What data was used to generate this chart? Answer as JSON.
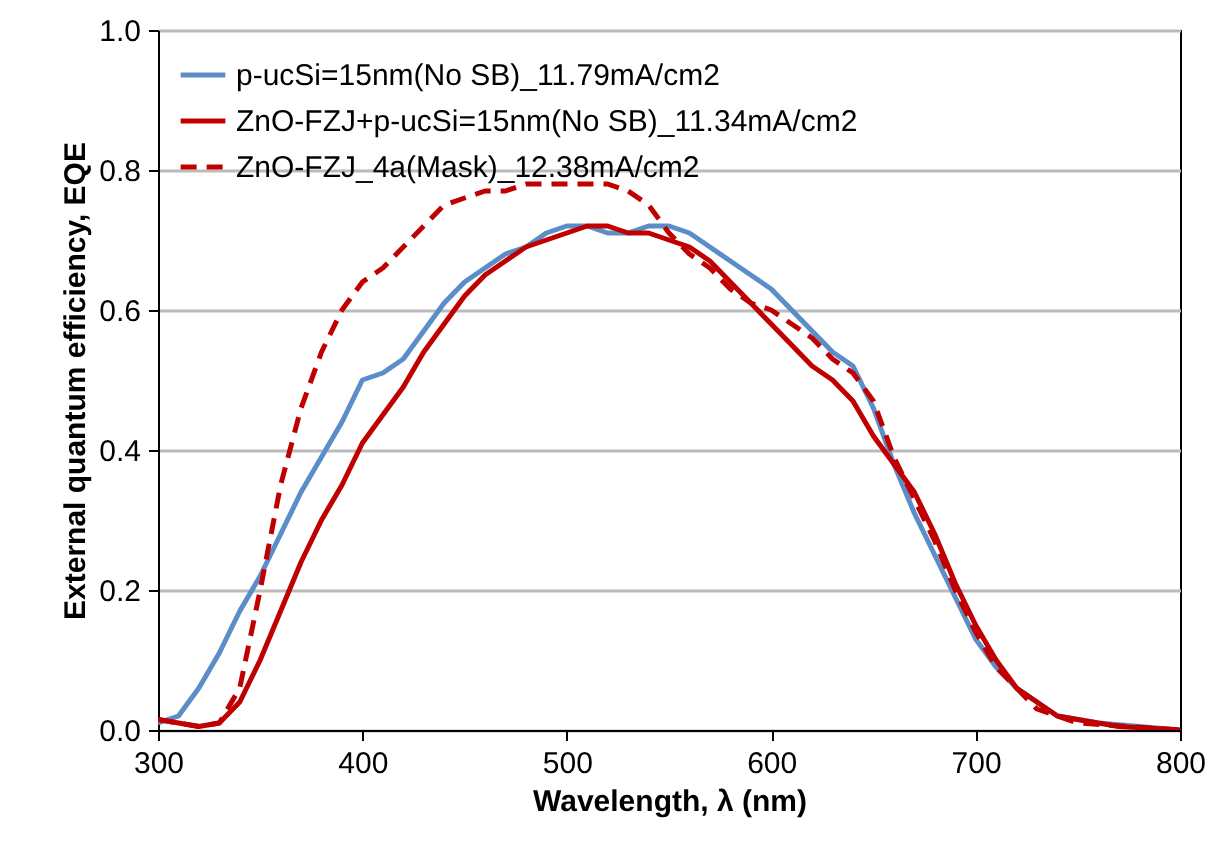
{
  "chart_data": {
    "type": "line",
    "xlabel": "Wavelength, λ (nm)",
    "ylabel": "External quantum efficiency, EQE",
    "xlim": [
      300,
      800
    ],
    "ylim": [
      0,
      1.0
    ],
    "xticks": [
      300,
      400,
      500,
      600,
      700,
      800
    ],
    "yticks": [
      {
        "value": 0,
        "label": "0.0"
      },
      0.2,
      0.4,
      0.6,
      0.8,
      {
        "value": 1,
        "label": "1.0"
      }
    ],
    "grid": "y",
    "legend": "top left",
    "series": [
      {
        "name": "p-ucSi=15nm(No SB)_11.79mA/cm2",
        "color": "#5b8ec9",
        "line_style": "solid",
        "x": [
          300,
          310,
          320,
          330,
          340,
          350,
          360,
          370,
          380,
          390,
          400,
          410,
          420,
          430,
          440,
          450,
          460,
          470,
          480,
          490,
          500,
          510,
          520,
          530,
          540,
          550,
          560,
          570,
          580,
          590,
          600,
          610,
          620,
          630,
          640,
          650,
          660,
          670,
          680,
          690,
          700,
          710,
          720,
          730,
          740,
          750,
          760,
          780,
          800
        ],
        "values": [
          0.01,
          0.02,
          0.06,
          0.11,
          0.17,
          0.22,
          0.28,
          0.34,
          0.39,
          0.44,
          0.5,
          0.51,
          0.53,
          0.57,
          0.61,
          0.64,
          0.66,
          0.68,
          0.69,
          0.71,
          0.72,
          0.72,
          0.71,
          0.71,
          0.72,
          0.72,
          0.71,
          0.69,
          0.67,
          0.65,
          0.63,
          0.6,
          0.57,
          0.54,
          0.52,
          0.46,
          0.38,
          0.31,
          0.25,
          0.19,
          0.13,
          0.09,
          0.06,
          0.04,
          0.02,
          0.015,
          0.01,
          0.005,
          0
        ]
      },
      {
        "name": "ZnO-FZJ+p-ucSi=15nm(No SB)_11.34mA/cm2",
        "color": "#c00000",
        "line_style": "solid",
        "x": [
          300,
          310,
          320,
          330,
          340,
          350,
          360,
          370,
          380,
          390,
          400,
          410,
          420,
          430,
          440,
          450,
          460,
          470,
          480,
          490,
          500,
          510,
          520,
          530,
          540,
          550,
          560,
          570,
          580,
          590,
          600,
          610,
          620,
          630,
          640,
          650,
          660,
          670,
          680,
          690,
          700,
          710,
          720,
          730,
          740,
          750,
          770,
          800
        ],
        "values": [
          0.015,
          0.01,
          0.005,
          0.01,
          0.04,
          0.1,
          0.17,
          0.24,
          0.3,
          0.35,
          0.41,
          0.45,
          0.49,
          0.54,
          0.58,
          0.62,
          0.65,
          0.67,
          0.69,
          0.7,
          0.71,
          0.72,
          0.72,
          0.71,
          0.71,
          0.7,
          0.69,
          0.67,
          0.64,
          0.61,
          0.58,
          0.55,
          0.52,
          0.5,
          0.47,
          0.42,
          0.38,
          0.34,
          0.28,
          0.21,
          0.15,
          0.1,
          0.06,
          0.04,
          0.02,
          0.015,
          0.005,
          0
        ]
      },
      {
        "name": "ZnO-FZJ_4a(Mask)_12.38mA/cm2",
        "color": "#c00000",
        "line_style": "dashed",
        "x": [
          300,
          320,
          330,
          340,
          350,
          360,
          370,
          380,
          390,
          400,
          410,
          420,
          430,
          440,
          450,
          460,
          470,
          480,
          490,
          500,
          510,
          520,
          530,
          540,
          550,
          560,
          570,
          580,
          590,
          600,
          610,
          620,
          630,
          640,
          650,
          660,
          670,
          680,
          690,
          700,
          710,
          720,
          730,
          740,
          750,
          800
        ],
        "values": [
          0.015,
          0.005,
          0.01,
          0.06,
          0.2,
          0.35,
          0.46,
          0.54,
          0.6,
          0.64,
          0.66,
          0.69,
          0.72,
          0.75,
          0.76,
          0.77,
          0.77,
          0.78,
          0.78,
          0.78,
          0.78,
          0.78,
          0.77,
          0.75,
          0.71,
          0.68,
          0.66,
          0.63,
          0.61,
          0.6,
          0.58,
          0.56,
          0.53,
          0.51,
          0.47,
          0.39,
          0.33,
          0.27,
          0.2,
          0.14,
          0.09,
          0.06,
          0.03,
          0.02,
          0.01,
          0
        ]
      }
    ]
  }
}
